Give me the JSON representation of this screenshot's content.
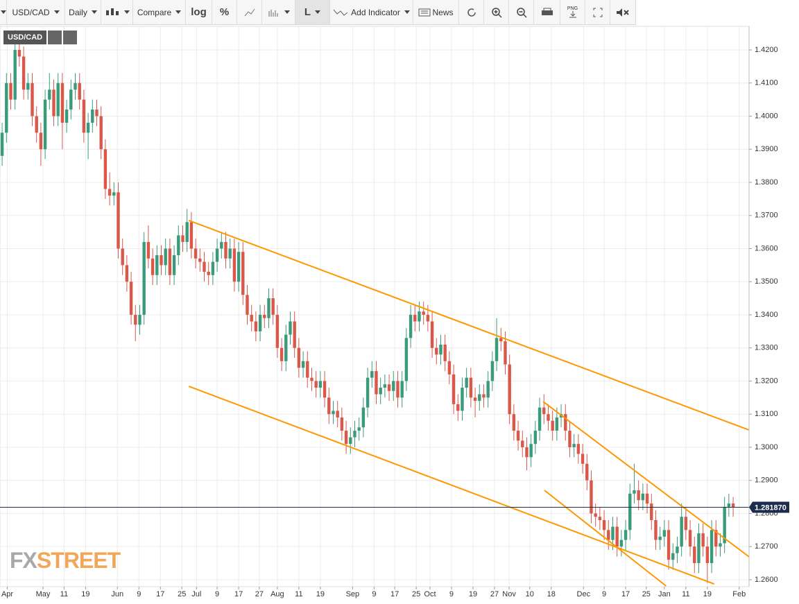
{
  "toolbar": {
    "symbol": "USD/CAD",
    "interval": "Daily",
    "compare": "Compare",
    "log": "log",
    "percent": "%",
    "line": "L",
    "indicator": "Add Indicator",
    "news": "News",
    "png": "PNG"
  },
  "chart_data": {
    "type": "candlestick",
    "badge": "USD/CAD",
    "watermark": [
      "FX",
      "STREET"
    ],
    "up_color": "#3a9b7a",
    "down_color": "#d9584a",
    "grid": true,
    "xlim": [
      -0.5,
      173.7
    ],
    "ylim": [
      1.2581,
      1.4267
    ],
    "xticks": [
      {
        "value": 1.2,
        "label": "Apr"
      },
      {
        "value": 9.5,
        "label": "May"
      },
      {
        "value": 14.4,
        "label": "11"
      },
      {
        "value": 19.4,
        "label": "19"
      },
      {
        "value": 26.8,
        "label": "Jun"
      },
      {
        "value": 31.8,
        "label": "9"
      },
      {
        "value": 36.8,
        "label": "17"
      },
      {
        "value": 41.8,
        "label": "25"
      },
      {
        "value": 45.2,
        "label": "Jul"
      },
      {
        "value": 50,
        "label": "9"
      },
      {
        "value": 55,
        "label": "17"
      },
      {
        "value": 59.8,
        "label": "27"
      },
      {
        "value": 64,
        "label": "Aug"
      },
      {
        "value": 69,
        "label": "11"
      },
      {
        "value": 74,
        "label": "19"
      },
      {
        "value": 81.5,
        "label": "Sep"
      },
      {
        "value": 86.5,
        "label": "9"
      },
      {
        "value": 91.3,
        "label": "17"
      },
      {
        "value": 96.3,
        "label": "25"
      },
      {
        "value": 99.5,
        "label": "Oct"
      },
      {
        "value": 104.5,
        "label": "9"
      },
      {
        "value": 109.5,
        "label": "19"
      },
      {
        "value": 114.5,
        "label": "27"
      },
      {
        "value": 117.9,
        "label": "Nov"
      },
      {
        "value": 122.7,
        "label": "10"
      },
      {
        "value": 127.7,
        "label": "18"
      },
      {
        "value": 135.2,
        "label": "Dec"
      },
      {
        "value": 140,
        "label": "9"
      },
      {
        "value": 145,
        "label": "17"
      },
      {
        "value": 149.8,
        "label": "25"
      },
      {
        "value": 154,
        "label": "Jan"
      },
      {
        "value": 159,
        "label": "11"
      },
      {
        "value": 164,
        "label": "19"
      },
      {
        "value": 171.4,
        "label": "Feb"
      }
    ],
    "yticks": [
      {
        "value": 1.26,
        "label": "1.2600"
      },
      {
        "value": 1.27,
        "label": "1.2700"
      },
      {
        "value": 1.28,
        "label": "1.2800"
      },
      {
        "value": 1.29,
        "label": "1.2900"
      },
      {
        "value": 1.3,
        "label": "1.3000"
      },
      {
        "value": 1.31,
        "label": "1.3100"
      },
      {
        "value": 1.32,
        "label": "1.3200"
      },
      {
        "value": 1.33,
        "label": "1.3300"
      },
      {
        "value": 1.34,
        "label": "1.3400"
      },
      {
        "value": 1.35,
        "label": "1.3500"
      },
      {
        "value": 1.36,
        "label": "1.3600"
      },
      {
        "value": 1.37,
        "label": "1.3700"
      },
      {
        "value": 1.38,
        "label": "1.3800"
      },
      {
        "value": 1.39,
        "label": "1.3900"
      },
      {
        "value": 1.4,
        "label": "1.4000"
      },
      {
        "value": 1.41,
        "label": "1.4100"
      },
      {
        "value": 1.42,
        "label": "1.4200"
      }
    ],
    "last_price": {
      "value": 1.28187,
      "label": "1.281870",
      "color": "#1d2c4c"
    },
    "trend_lines": [
      {
        "x": [
          43.4,
          173.7
        ],
        "y": [
          1.3685,
          1.3052
        ],
        "color": "#ff9800"
      },
      {
        "x": [
          43.4,
          165.6
        ],
        "y": [
          1.3184,
          1.2587
        ],
        "color": "#ff9800"
      },
      {
        "x": [
          125.8,
          173.7
        ],
        "y": [
          1.3138,
          1.2669
        ],
        "color": "#ff9800"
      },
      {
        "x": [
          126.1,
          154.4
        ],
        "y": [
          1.287,
          1.2581
        ],
        "color": "#ff9800"
      }
    ],
    "ohlc": [
      [
        1.388,
        1.398,
        1.385,
        1.395
      ],
      [
        1.395,
        1.413,
        1.392,
        1.41
      ],
      [
        1.41,
        1.413,
        1.402,
        1.405
      ],
      [
        1.405,
        1.426,
        1.402,
        1.42
      ],
      [
        1.42,
        1.423,
        1.415,
        1.418
      ],
      [
        1.418,
        1.421,
        1.405,
        1.408
      ],
      [
        1.408,
        1.413,
        1.405,
        1.41
      ],
      [
        1.41,
        1.413,
        1.397,
        1.4
      ],
      [
        1.4,
        1.403,
        1.392,
        1.395
      ],
      [
        1.395,
        1.398,
        1.385,
        1.39
      ],
      [
        1.39,
        1.408,
        1.387,
        1.405
      ],
      [
        1.405,
        1.413,
        1.402,
        1.408
      ],
      [
        1.408,
        1.411,
        1.397,
        1.4
      ],
      [
        1.4,
        1.413,
        1.397,
        1.41
      ],
      [
        1.41,
        1.413,
        1.39,
        1.398
      ],
      [
        1.398,
        1.405,
        1.395,
        1.402
      ],
      [
        1.402,
        1.411,
        1.399,
        1.408
      ],
      [
        1.408,
        1.413,
        1.405,
        1.41
      ],
      [
        1.41,
        1.413,
        1.402,
        1.405
      ],
      [
        1.405,
        1.408,
        1.392,
        1.395
      ],
      [
        1.395,
        1.401,
        1.387,
        1.398
      ],
      [
        1.398,
        1.405,
        1.395,
        1.402
      ],
      [
        1.402,
        1.405,
        1.397,
        1.4
      ],
      [
        1.4,
        1.403,
        1.387,
        1.39
      ],
      [
        1.39,
        1.393,
        1.375,
        1.378
      ],
      [
        1.378,
        1.383,
        1.373,
        1.376
      ],
      [
        1.376,
        1.38,
        1.373,
        1.377
      ],
      [
        1.377,
        1.38,
        1.357,
        1.36
      ],
      [
        1.36,
        1.363,
        1.352,
        1.355
      ],
      [
        1.355,
        1.358,
        1.347,
        1.35
      ],
      [
        1.35,
        1.353,
        1.337,
        1.34
      ],
      [
        1.34,
        1.343,
        1.332,
        1.337
      ],
      [
        1.337,
        1.343,
        1.334,
        1.34
      ],
      [
        1.34,
        1.365,
        1.337,
        1.362
      ],
      [
        1.362,
        1.367,
        1.354,
        1.357
      ],
      [
        1.357,
        1.36,
        1.349,
        1.352
      ],
      [
        1.352,
        1.361,
        1.349,
        1.358
      ],
      [
        1.358,
        1.361,
        1.352,
        1.355
      ],
      [
        1.355,
        1.363,
        1.352,
        1.36
      ],
      [
        1.36,
        1.363,
        1.349,
        1.352
      ],
      [
        1.352,
        1.361,
        1.349,
        1.358
      ],
      [
        1.358,
        1.367,
        1.355,
        1.364
      ],
      [
        1.364,
        1.367,
        1.359,
        1.362
      ],
      [
        1.362,
        1.372,
        1.359,
        1.368
      ],
      [
        1.368,
        1.371,
        1.357,
        1.36
      ],
      [
        1.36,
        1.363,
        1.354,
        1.357
      ],
      [
        1.357,
        1.36,
        1.353,
        1.356
      ],
      [
        1.356,
        1.359,
        1.35,
        1.353
      ],
      [
        1.353,
        1.356,
        1.349,
        1.352
      ],
      [
        1.352,
        1.359,
        1.349,
        1.356
      ],
      [
        1.356,
        1.363,
        1.353,
        1.36
      ],
      [
        1.36,
        1.365,
        1.357,
        1.362
      ],
      [
        1.362,
        1.365,
        1.354,
        1.357
      ],
      [
        1.357,
        1.363,
        1.354,
        1.36
      ],
      [
        1.36,
        1.363,
        1.347,
        1.35
      ],
      [
        1.35,
        1.362,
        1.347,
        1.359
      ],
      [
        1.359,
        1.362,
        1.343,
        1.346
      ],
      [
        1.346,
        1.349,
        1.337,
        1.34
      ],
      [
        1.34,
        1.343,
        1.335,
        1.338
      ],
      [
        1.338,
        1.341,
        1.332,
        1.335
      ],
      [
        1.335,
        1.343,
        1.332,
        1.34
      ],
      [
        1.34,
        1.343,
        1.336,
        1.339
      ],
      [
        1.339,
        1.348,
        1.336,
        1.345
      ],
      [
        1.345,
        1.348,
        1.337,
        1.34
      ],
      [
        1.34,
        1.343,
        1.327,
        1.33
      ],
      [
        1.33,
        1.333,
        1.323,
        1.326
      ],
      [
        1.326,
        1.337,
        1.323,
        1.334
      ],
      [
        1.334,
        1.341,
        1.331,
        1.338
      ],
      [
        1.338,
        1.341,
        1.327,
        1.33
      ],
      [
        1.33,
        1.333,
        1.321,
        1.324
      ],
      [
        1.324,
        1.329,
        1.321,
        1.326
      ],
      [
        1.326,
        1.329,
        1.318,
        1.321
      ],
      [
        1.321,
        1.324,
        1.317,
        1.32
      ],
      [
        1.32,
        1.323,
        1.315,
        1.318
      ],
      [
        1.318,
        1.323,
        1.315,
        1.32
      ],
      [
        1.32,
        1.323,
        1.312,
        1.315
      ],
      [
        1.315,
        1.318,
        1.307,
        1.31
      ],
      [
        1.31,
        1.314,
        1.307,
        1.311
      ],
      [
        1.311,
        1.314,
        1.306,
        1.309
      ],
      [
        1.309,
        1.312,
        1.302,
        1.305
      ],
      [
        1.305,
        1.308,
        1.298,
        1.301
      ],
      [
        1.301,
        1.306,
        1.298,
        1.303
      ],
      [
        1.303,
        1.308,
        1.3,
        1.305
      ],
      [
        1.305,
        1.309,
        1.302,
        1.306
      ],
      [
        1.306,
        1.315,
        1.303,
        1.312
      ],
      [
        1.312,
        1.324,
        1.309,
        1.321
      ],
      [
        1.321,
        1.326,
        1.318,
        1.323
      ],
      [
        1.323,
        1.326,
        1.313,
        1.316
      ],
      [
        1.316,
        1.321,
        1.313,
        1.318
      ],
      [
        1.318,
        1.322,
        1.315,
        1.319
      ],
      [
        1.319,
        1.322,
        1.314,
        1.317
      ],
      [
        1.317,
        1.323,
        1.314,
        1.32
      ],
      [
        1.32,
        1.323,
        1.312,
        1.315
      ],
      [
        1.315,
        1.323,
        1.312,
        1.32
      ],
      [
        1.32,
        1.336,
        1.317,
        1.333
      ],
      [
        1.333,
        1.343,
        1.33,
        1.34
      ],
      [
        1.34,
        1.343,
        1.335,
        1.338
      ],
      [
        1.338,
        1.344,
        1.335,
        1.341
      ],
      [
        1.341,
        1.344,
        1.337,
        1.34
      ],
      [
        1.34,
        1.343,
        1.335,
        1.338
      ],
      [
        1.338,
        1.341,
        1.327,
        1.33
      ],
      [
        1.33,
        1.333,
        1.325,
        1.328
      ],
      [
        1.328,
        1.334,
        1.325,
        1.331
      ],
      [
        1.331,
        1.334,
        1.323,
        1.326
      ],
      [
        1.326,
        1.329,
        1.319,
        1.322
      ],
      [
        1.322,
        1.325,
        1.31,
        1.313
      ],
      [
        1.313,
        1.316,
        1.308,
        1.311
      ],
      [
        1.311,
        1.321,
        1.308,
        1.318
      ],
      [
        1.318,
        1.324,
        1.315,
        1.321
      ],
      [
        1.321,
        1.324,
        1.312,
        1.315
      ],
      [
        1.315,
        1.318,
        1.309,
        1.314
      ],
      [
        1.314,
        1.319,
        1.311,
        1.316
      ],
      [
        1.316,
        1.319,
        1.312,
        1.315
      ],
      [
        1.315,
        1.323,
        1.312,
        1.32
      ],
      [
        1.32,
        1.329,
        1.317,
        1.326
      ],
      [
        1.326,
        1.339,
        1.323,
        1.333
      ],
      [
        1.333,
        1.336,
        1.329,
        1.332
      ],
      [
        1.332,
        1.335,
        1.322,
        1.325
      ],
      [
        1.325,
        1.328,
        1.307,
        1.31
      ],
      [
        1.31,
        1.313,
        1.302,
        1.305
      ],
      [
        1.305,
        1.308,
        1.299,
        1.302
      ],
      [
        1.302,
        1.305,
        1.297,
        1.3
      ],
      [
        1.3,
        1.303,
        1.293,
        1.297
      ],
      [
        1.297,
        1.304,
        1.294,
        1.301
      ],
      [
        1.301,
        1.308,
        1.298,
        1.305
      ],
      [
        1.305,
        1.315,
        1.302,
        1.312
      ],
      [
        1.312,
        1.316,
        1.307,
        1.31
      ],
      [
        1.31,
        1.313,
        1.305,
        1.308
      ],
      [
        1.308,
        1.311,
        1.302,
        1.305
      ],
      [
        1.305,
        1.312,
        1.302,
        1.309
      ],
      [
        1.309,
        1.313,
        1.306,
        1.31
      ],
      [
        1.31,
        1.313,
        1.302,
        1.305
      ],
      [
        1.305,
        1.308,
        1.297,
        1.3
      ],
      [
        1.3,
        1.304,
        1.297,
        1.301
      ],
      [
        1.301,
        1.304,
        1.295,
        1.298
      ],
      [
        1.298,
        1.301,
        1.292,
        1.295
      ],
      [
        1.295,
        1.298,
        1.287,
        1.29
      ],
      [
        1.29,
        1.293,
        1.277,
        1.28
      ],
      [
        1.28,
        1.283,
        1.276,
        1.279
      ],
      [
        1.279,
        1.282,
        1.275,
        1.278
      ],
      [
        1.278,
        1.281,
        1.272,
        1.275
      ],
      [
        1.275,
        1.278,
        1.269,
        1.272
      ],
      [
        1.272,
        1.279,
        1.269,
        1.276
      ],
      [
        1.276,
        1.279,
        1.267,
        1.27
      ],
      [
        1.27,
        1.275,
        1.267,
        1.272
      ],
      [
        1.272,
        1.278,
        1.269,
        1.275
      ],
      [
        1.275,
        1.289,
        1.272,
        1.286
      ],
      [
        1.286,
        1.295,
        1.283,
        1.287
      ],
      [
        1.287,
        1.29,
        1.281,
        1.284
      ],
      [
        1.284,
        1.289,
        1.281,
        1.286
      ],
      [
        1.286,
        1.289,
        1.28,
        1.283
      ],
      [
        1.283,
        1.286,
        1.275,
        1.278
      ],
      [
        1.278,
        1.281,
        1.269,
        1.272
      ],
      [
        1.272,
        1.276,
        1.269,
        1.273
      ],
      [
        1.273,
        1.278,
        1.27,
        1.275
      ],
      [
        1.275,
        1.278,
        1.263,
        1.266
      ],
      [
        1.266,
        1.271,
        1.263,
        1.268
      ],
      [
        1.268,
        1.273,
        1.265,
        1.27
      ],
      [
        1.27,
        1.283,
        1.267,
        1.279
      ],
      [
        1.279,
        1.282,
        1.272,
        1.275
      ],
      [
        1.275,
        1.278,
        1.267,
        1.27
      ],
      [
        1.27,
        1.273,
        1.262,
        1.265
      ],
      [
        1.265,
        1.277,
        1.262,
        1.274
      ],
      [
        1.274,
        1.277,
        1.267,
        1.27
      ],
      [
        1.27,
        1.273,
        1.259,
        1.265
      ],
      [
        1.265,
        1.278,
        1.262,
        1.275
      ],
      [
        1.275,
        1.278,
        1.267,
        1.27
      ],
      [
        1.27,
        1.274,
        1.267,
        1.271
      ],
      [
        1.271,
        1.285,
        1.268,
        1.282
      ],
      [
        1.282,
        1.286,
        1.279,
        1.283
      ],
      [
        1.283,
        1.285,
        1.279,
        1.2819
      ]
    ]
  }
}
